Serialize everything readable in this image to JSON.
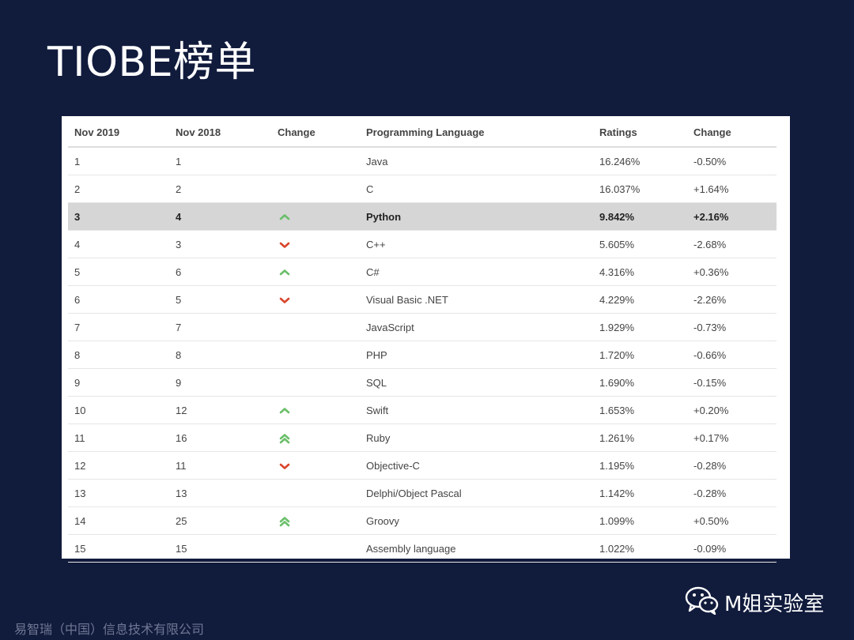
{
  "title": "TIOBE榜单",
  "table": {
    "headers": [
      "Nov 2019",
      "Nov 2018",
      "Change",
      "Programming Language",
      "Ratings",
      "Change"
    ],
    "rows": [
      {
        "nov2019": "1",
        "nov2018": "1",
        "trend": "none",
        "language": "Java",
        "ratings": "16.246%",
        "change": "-0.50%"
      },
      {
        "nov2019": "2",
        "nov2018": "2",
        "trend": "none",
        "language": "C",
        "ratings": "16.037%",
        "change": "+1.64%"
      },
      {
        "nov2019": "3",
        "nov2018": "4",
        "trend": "up",
        "language": "Python",
        "ratings": "9.842%",
        "change": "+2.16%"
      },
      {
        "nov2019": "4",
        "nov2018": "3",
        "trend": "down",
        "language": "C++",
        "ratings": "5.605%",
        "change": "-2.68%"
      },
      {
        "nov2019": "5",
        "nov2018": "6",
        "trend": "up",
        "language": "C#",
        "ratings": "4.316%",
        "change": "+0.36%"
      },
      {
        "nov2019": "6",
        "nov2018": "5",
        "trend": "down",
        "language": "Visual Basic .NET",
        "ratings": "4.229%",
        "change": "-2.26%"
      },
      {
        "nov2019": "7",
        "nov2018": "7",
        "trend": "none",
        "language": "JavaScript",
        "ratings": "1.929%",
        "change": "-0.73%"
      },
      {
        "nov2019": "8",
        "nov2018": "8",
        "trend": "none",
        "language": "PHP",
        "ratings": "1.720%",
        "change": "-0.66%"
      },
      {
        "nov2019": "9",
        "nov2018": "9",
        "trend": "none",
        "language": "SQL",
        "ratings": "1.690%",
        "change": "-0.15%"
      },
      {
        "nov2019": "10",
        "nov2018": "12",
        "trend": "up",
        "language": "Swift",
        "ratings": "1.653%",
        "change": "+0.20%"
      },
      {
        "nov2019": "11",
        "nov2018": "16",
        "trend": "double-up",
        "language": "Ruby",
        "ratings": "1.261%",
        "change": "+0.17%"
      },
      {
        "nov2019": "12",
        "nov2018": "11",
        "trend": "down",
        "language": "Objective-C",
        "ratings": "1.195%",
        "change": "-0.28%"
      },
      {
        "nov2019": "13",
        "nov2018": "13",
        "trend": "none",
        "language": "Delphi/Object Pascal",
        "ratings": "1.142%",
        "change": "-0.28%"
      },
      {
        "nov2019": "14",
        "nov2018": "25",
        "trend": "double-up",
        "language": "Groovy",
        "ratings": "1.099%",
        "change": "+0.50%"
      },
      {
        "nov2019": "15",
        "nov2018": "15",
        "trend": "none",
        "language": "Assembly language",
        "ratings": "1.022%",
        "change": "-0.09%"
      }
    ],
    "highlight_row": 2,
    "trend_icons": {
      "up": "chevron-up-icon",
      "double-up": "double-chevron-up-icon",
      "down": "chevron-down-icon"
    }
  },
  "colors": {
    "background": "#111b3c",
    "up": "#6abf69",
    "down": "#d9452b",
    "highlight": "#d6d6d6"
  },
  "footer": {
    "company": "易智瑞（中国）信息技术有限公司",
    "brand": "M姐实验室",
    "brand_icon": "wechat-icon"
  }
}
